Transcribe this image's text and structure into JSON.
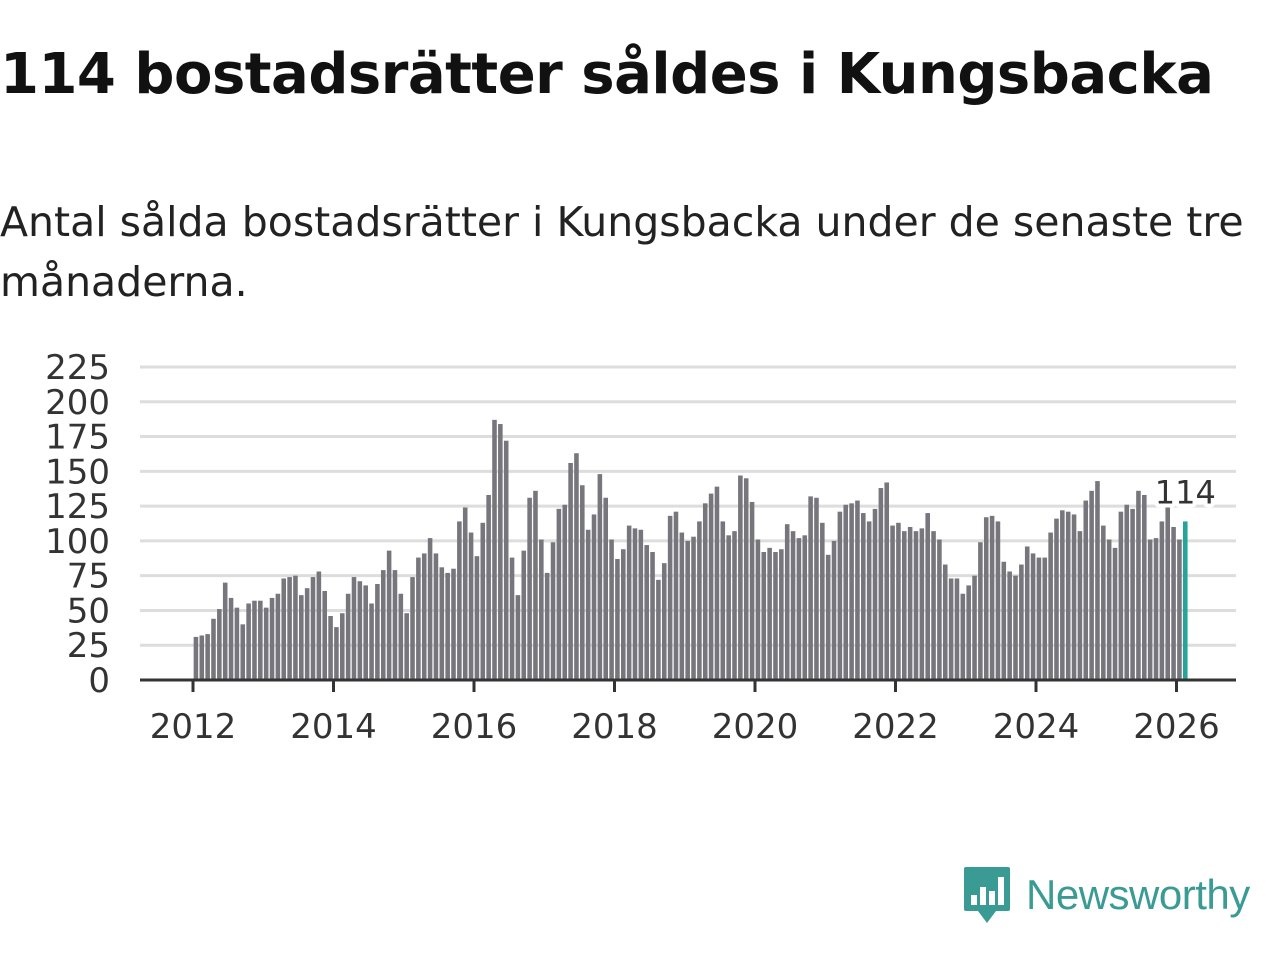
{
  "header": {
    "title": "114 bostadsrätter såldes i Kungsbacka",
    "subtitle": "Antal sålda bostadsrätter i Kungsbacka under de senaste tre månaderna."
  },
  "brand": {
    "name": "Newsworthy",
    "color": "#3a9b94"
  },
  "colors": {
    "bar": "#77767c",
    "highlight": "#26a49a",
    "grid": "#dddddd",
    "axis": "#333333"
  },
  "chart_data": {
    "type": "bar",
    "title": "114 bostadsrätter såldes i Kungsbacka",
    "xlabel": "",
    "ylabel": "",
    "ylim": [
      0,
      225
    ],
    "yticks": [
      0,
      25,
      50,
      75,
      100,
      125,
      150,
      175,
      200,
      225
    ],
    "xticks": [
      2012,
      2014,
      2016,
      2018,
      2020,
      2022,
      2024,
      2026
    ],
    "start": "2012-01",
    "values": [
      31,
      32,
      33,
      44,
      51,
      70,
      59,
      52,
      40,
      55,
      57,
      57,
      52,
      59,
      62,
      73,
      74,
      75,
      61,
      66,
      74,
      78,
      64,
      46,
      38,
      48,
      62,
      74,
      71,
      68,
      55,
      69,
      79,
      93,
      79,
      62,
      48,
      74,
      88,
      91,
      102,
      91,
      81,
      77,
      80,
      114,
      124,
      106,
      89,
      113,
      133,
      187,
      184,
      172,
      88,
      61,
      93,
      131,
      136,
      101,
      77,
      99,
      123,
      126,
      156,
      163,
      140,
      108,
      119,
      148,
      131,
      101,
      87,
      94,
      111,
      109,
      108,
      97,
      92,
      72,
      84,
      118,
      121,
      106,
      100,
      103,
      114,
      127,
      134,
      139,
      114,
      104,
      107,
      147,
      145,
      128,
      101,
      92,
      95,
      92,
      94,
      112,
      107,
      102,
      104,
      132,
      131,
      113,
      90,
      100,
      121,
      126,
      127,
      129,
      120,
      114,
      123,
      138,
      142,
      111,
      113,
      107,
      110,
      107,
      109,
      120,
      107,
      101,
      83,
      73,
      73,
      62,
      68,
      75,
      99,
      117,
      118,
      114,
      85,
      78,
      75,
      83,
      96,
      91,
      88,
      88,
      106,
      116,
      122,
      121,
      119,
      107,
      129,
      136,
      143,
      111,
      101,
      95,
      121,
      126,
      123,
      136,
      133,
      101,
      102,
      114,
      124,
      110,
      101,
      114
    ],
    "highlight_label": "114"
  }
}
